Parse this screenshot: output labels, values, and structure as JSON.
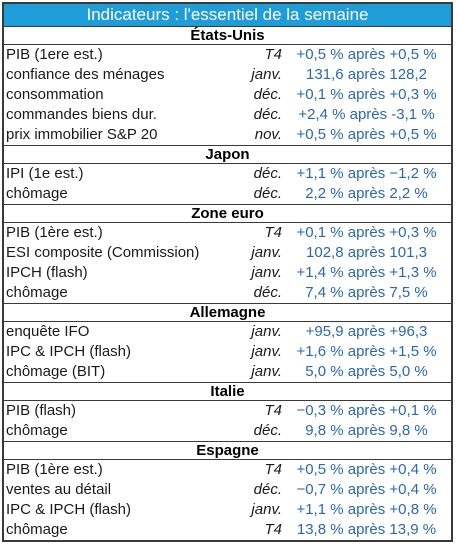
{
  "title": "Indicateurs : l'essentiel de la semaine",
  "sections": [
    {
      "name": "États-Unis",
      "rows": [
        {
          "label": "PIB (1ere est.)",
          "period": "T4",
          "value": "+0,5 % après +0,5 %"
        },
        {
          "label": "confiance des ménages",
          "period": "janv.",
          "value": "131,6 après 128,2"
        },
        {
          "label": "consommation",
          "period": "déc.",
          "value": "+0,1 % après +0,3 %"
        },
        {
          "label": "commandes biens dur.",
          "period": "déc.",
          "value": "+2,4 % après -3,1 %"
        },
        {
          "label": "prix immobilier S&P 20",
          "period": "nov.",
          "value": "+0,5 % après +0,5 %"
        }
      ]
    },
    {
      "name": "Japon",
      "rows": [
        {
          "label": "IPI (1e est.)",
          "period": "déc.",
          "value": "+1,1 % après −1,2 %"
        },
        {
          "label": "chômage",
          "period": "déc.",
          "value": "2,2 % après 2,2 %"
        }
      ]
    },
    {
      "name": "Zone euro",
      "rows": [
        {
          "label": "PIB (1ère est.)",
          "period": "T4",
          "value": "+0,1 % après +0,3 %"
        },
        {
          "label": "ESI composite (Commission)",
          "period": "janv.",
          "value": "102,8 après 101,3"
        },
        {
          "label": "IPCH (flash)",
          "period": "janv.",
          "value": "+1,4 % après +1,3 %"
        },
        {
          "label": "chômage",
          "period": "déc.",
          "value": "7,4 % après 7,5 %"
        }
      ]
    },
    {
      "name": "Allemagne",
      "rows": [
        {
          "label": "enquête IFO",
          "period": "janv.",
          "value": "+95,9 après +96,3"
        },
        {
          "label": "IPC & IPCH (flash)",
          "period": "janv.",
          "value": "+1,6 % après +1,5 %"
        },
        {
          "label": "chômage (BIT)",
          "period": "janv.",
          "value": "5,0 % après 5,0 %"
        }
      ]
    },
    {
      "name": "Italie",
      "rows": [
        {
          "label": "PIB (flash)",
          "period": "T4",
          "value": "−0,3 % après +0,1 %"
        },
        {
          "label": "chômage",
          "period": "déc.",
          "value": "9,8 % après 9,8 %"
        }
      ]
    },
    {
      "name": "Espagne",
      "rows": [
        {
          "label": "PIB (1ère est.)",
          "period": "T4",
          "value": "+0,5 % après +0,4 %"
        },
        {
          "label": "ventes au détail",
          "period": "déc.",
          "value": "−0,7 % après +0,4 %"
        },
        {
          "label": "IPC & IPCH (flash)",
          "period": "janv.",
          "value": "+1,1 % après +0,8 %"
        },
        {
          "label": "chômage",
          "period": "T4",
          "value": "13,8 % après 13,9 %"
        }
      ]
    }
  ]
}
